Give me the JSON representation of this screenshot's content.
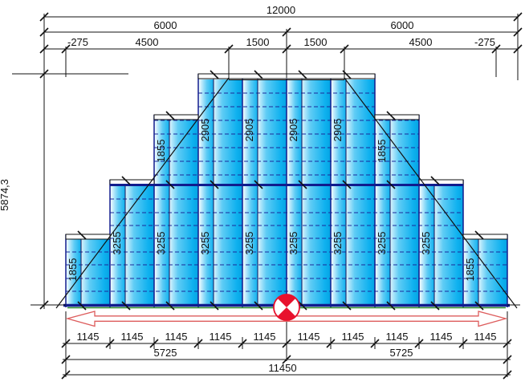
{
  "drawing": {
    "dim_left": {
      "value": "5874,3"
    },
    "dim_top": {
      "row1": [
        "12000"
      ],
      "row2": [
        "6000",
        "6000"
      ],
      "row3": [
        "-275",
        "4500",
        "1500",
        "1500",
        "4500",
        "-275"
      ]
    },
    "dim_bottom": {
      "row1": [
        "1145",
        "1145",
        "1145",
        "1145",
        "1145",
        "1145",
        "1145",
        "1145",
        "1145",
        "1145"
      ],
      "row2": [
        "5725",
        "5725"
      ],
      "row3": [
        "11450"
      ]
    },
    "panels": {
      "lower_band_labels": [
        "1855",
        "3255",
        "3255",
        "3255",
        "3255",
        "3255",
        "3255",
        "3255",
        "3255",
        "1855"
      ],
      "upper_band_labels": [
        "",
        "",
        "1855",
        "2905",
        "2905",
        "2905",
        "2905",
        "1855",
        "",
        ""
      ]
    },
    "colors": {
      "panel_blue": "#0fb1ef",
      "panel_mid": "#5fccf5",
      "panel_light": "#ffffff",
      "line_navy": "#101c8e",
      "dashed_navy": "#1b2a9b",
      "outline_black": "#111111",
      "green_base": "#2f8f2f",
      "red": "#e8112d",
      "red_soft": "#dd5c5c"
    },
    "icons": {
      "center_symbol": "center-of-gravity-icon",
      "span_arrow": "double-headed-arrow-icon"
    }
  }
}
